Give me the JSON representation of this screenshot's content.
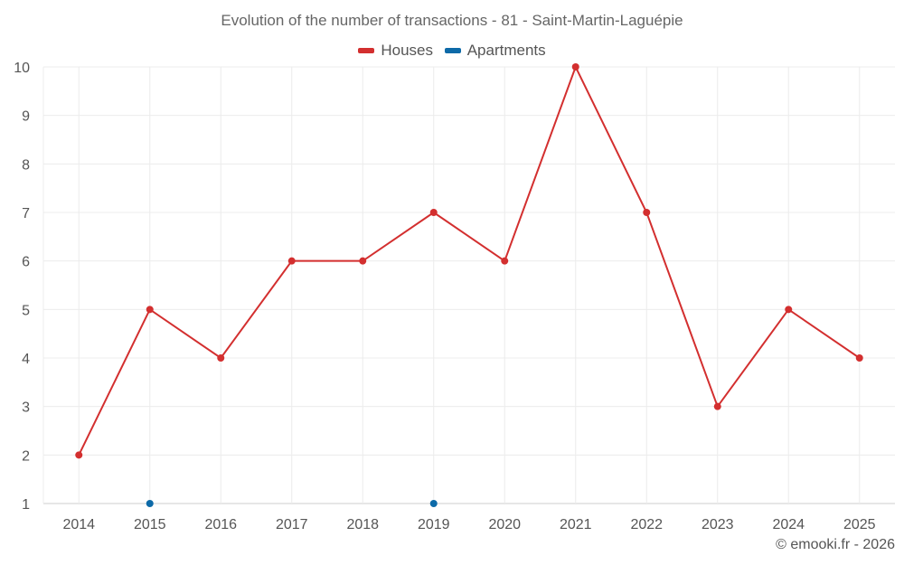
{
  "chart_data": {
    "type": "line",
    "title": "Evolution of the number of transactions - 81 - Saint-Martin-Laguépie",
    "categories": [
      "2014",
      "2015",
      "2016",
      "2017",
      "2018",
      "2019",
      "2020",
      "2021",
      "2022",
      "2023",
      "2024",
      "2025"
    ],
    "series": [
      {
        "name": "Houses",
        "color": "#d32f2f",
        "values": [
          2,
          5,
          4,
          6,
          6,
          7,
          6,
          10,
          7,
          3,
          5,
          4
        ]
      },
      {
        "name": "Apartments",
        "color": "#0d6aa8",
        "values": [
          null,
          1,
          null,
          null,
          null,
          1,
          null,
          null,
          null,
          null,
          null,
          null
        ]
      }
    ],
    "ylim": [
      1,
      10
    ],
    "yticks": [
      "1",
      "2",
      "3",
      "4",
      "5",
      "6",
      "7",
      "8",
      "9",
      "10"
    ],
    "grid": true,
    "legend_position": "top-center",
    "xlabel": "",
    "ylabel": ""
  },
  "credit": "© emooki.fr - 2026"
}
